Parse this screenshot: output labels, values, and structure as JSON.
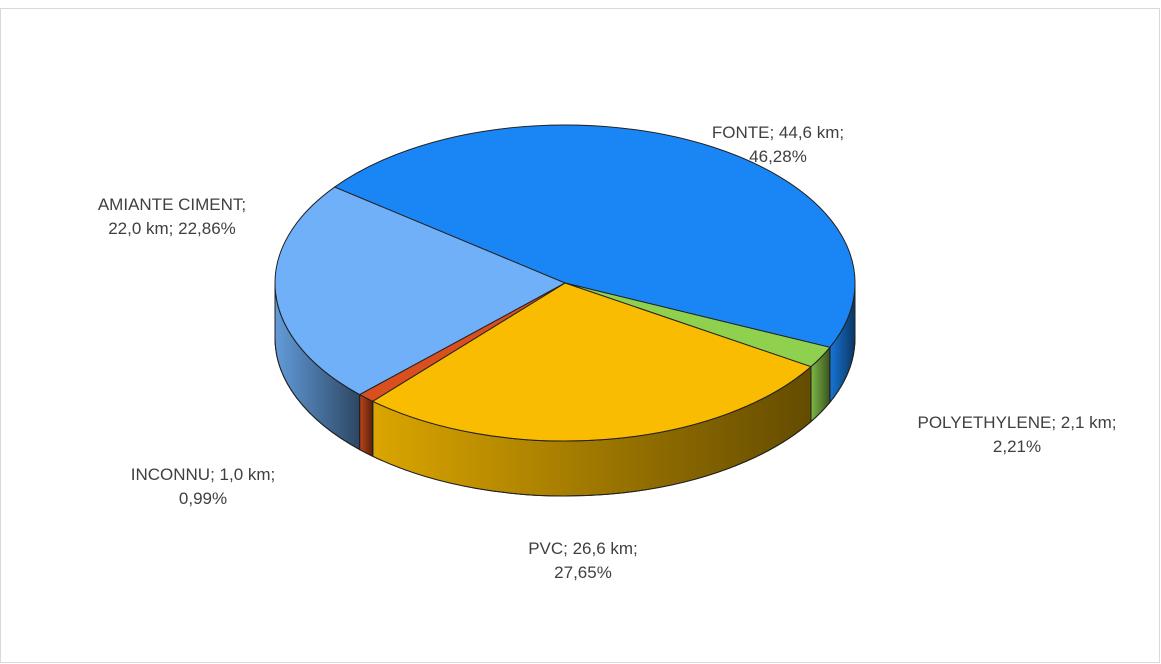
{
  "chart_data": {
    "type": "pie",
    "values": [
      46.28,
      2.21,
      27.65,
      0.99,
      22.86
    ],
    "value_labels": [
      [
        "FONTE; 44,6 km;",
        "46,28%"
      ],
      [
        "POLYETHYLENE; 2,1 km;",
        "2,21%"
      ],
      [
        "PVC; 26,6 km;",
        "27,65%"
      ],
      [
        "INCONNU; 1,0 km;",
        "0,99%"
      ],
      [
        "AMIANTE CIMENT;",
        "22,0 km; 22,86%"
      ]
    ],
    "colors": [
      "#1a86f5",
      "#8fd14f",
      "#f9bc00",
      "#d9501e",
      "#70b0f8"
    ]
  }
}
